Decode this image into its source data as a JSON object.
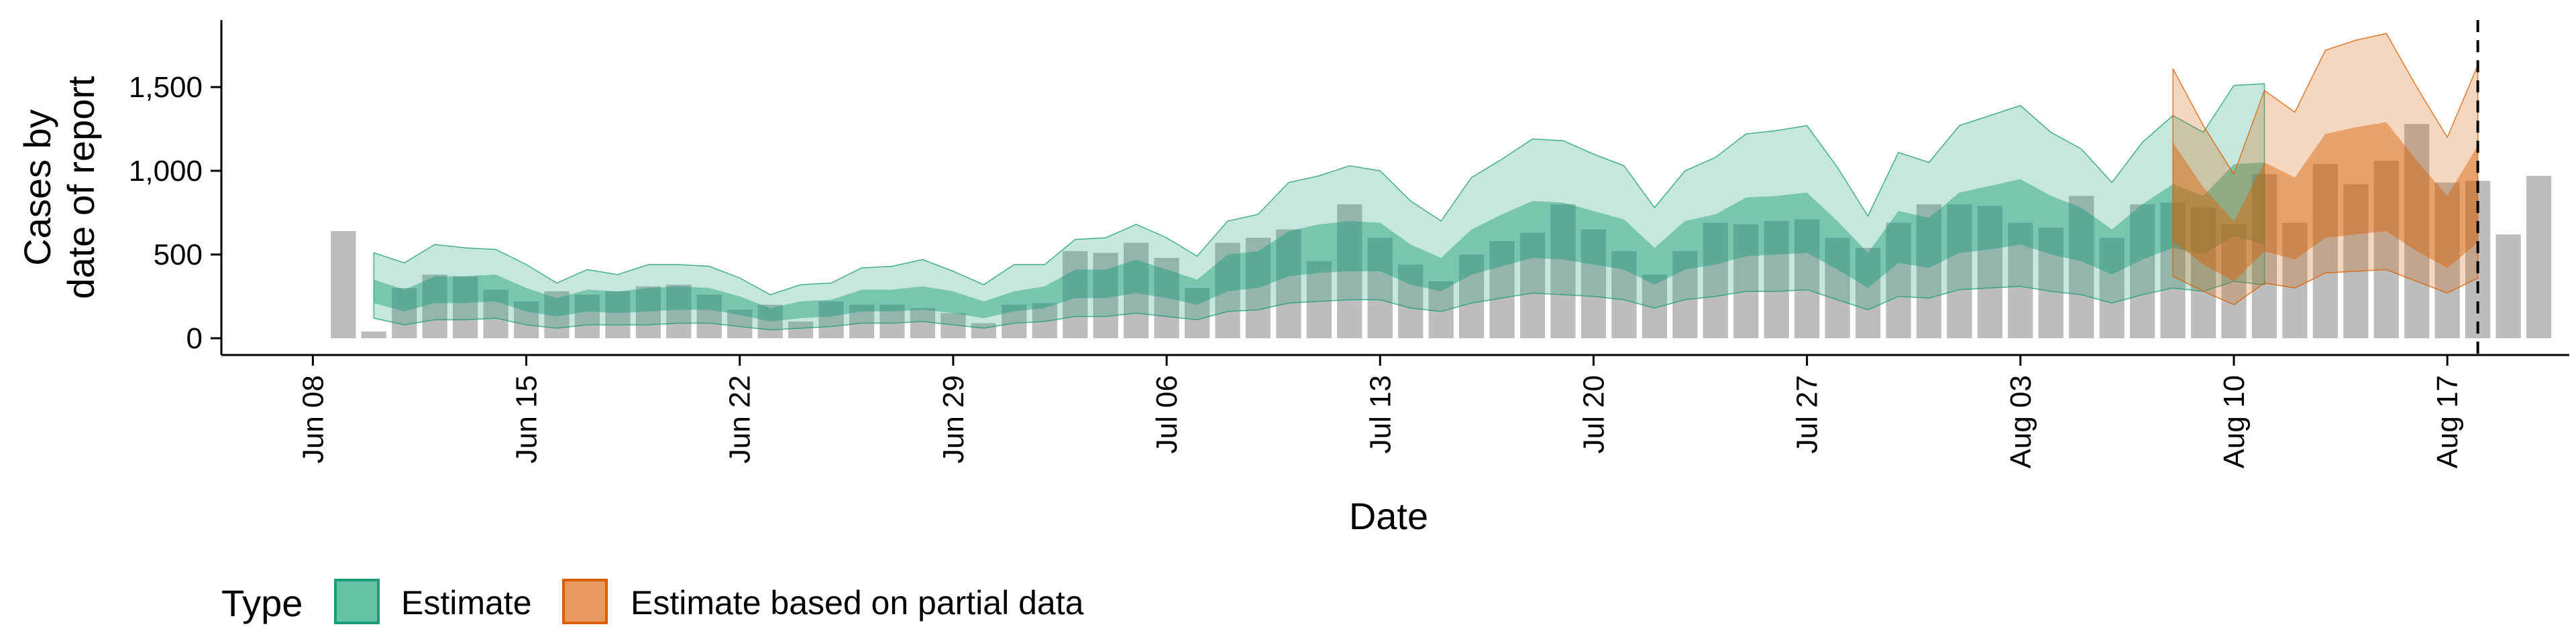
{
  "chart_data": {
    "type": "area",
    "xlabel": "Date",
    "ylabel": "Cases by\ndate of report",
    "ylim": [
      -100,
      1900
    ],
    "y_ticks": [
      0,
      500,
      1000,
      1500
    ],
    "y_tick_labels": [
      "0",
      "500",
      "1,000",
      "1,500"
    ],
    "x_ticks": [
      "2020-06-08",
      "2020-06-15",
      "2020-06-22",
      "2020-06-29",
      "2020-07-06",
      "2020-07-13",
      "2020-07-20",
      "2020-07-27",
      "2020-08-03",
      "2020-08-10",
      "2020-08-17"
    ],
    "x_tick_labels": [
      "Jun 08",
      "Jun 15",
      "Jun 22",
      "Jun 29",
      "Jul 06",
      "Jul 13",
      "Jul 20",
      "Jul 27",
      "Aug 03",
      "Aug 10",
      "Aug 17"
    ],
    "x_range": [
      "2020-06-05",
      "2020-08-21"
    ],
    "vline_date": "2020-08-18",
    "bars_start_date": "2020-06-09",
    "bars_values": [
      640,
      40,
      300,
      380,
      370,
      290,
      220,
      280,
      260,
      280,
      310,
      320,
      260,
      170,
      200,
      100,
      220,
      200,
      200,
      180,
      150,
      90,
      200,
      210,
      520,
      510,
      570,
      480,
      300,
      570,
      600,
      650,
      460,
      800,
      600,
      440,
      340,
      500,
      580,
      630,
      800,
      650,
      520,
      380,
      520,
      690,
      680,
      700,
      710,
      600,
      540,
      690,
      800,
      800,
      790,
      690,
      660,
      850,
      600,
      800,
      810,
      780,
      680,
      980,
      690,
      1040,
      920,
      1060,
      1280,
      930,
      940,
      620,
      970
    ],
    "series": [
      {
        "name": "Estimate",
        "start_date": "2020-06-10",
        "outer_upper": [
          510,
          450,
          560,
          540,
          530,
          440,
          330,
          410,
          380,
          440,
          440,
          430,
          360,
          260,
          320,
          330,
          420,
          430,
          470,
          400,
          320,
          440,
          440,
          590,
          600,
          680,
          600,
          490,
          700,
          740,
          930,
          970,
          1030,
          1000,
          820,
          700,
          960,
          1070,
          1190,
          1180,
          1100,
          1030,
          780,
          1000,
          1080,
          1220,
          1240,
          1270,
          1020,
          730,
          1110,
          1050,
          1270,
          1330,
          1390,
          1230,
          1130,
          930,
          1170,
          1330,
          1230,
          1510,
          1520
        ],
        "inner_upper": [
          350,
          290,
          370,
          370,
          380,
          300,
          240,
          290,
          280,
          300,
          310,
          300,
          250,
          180,
          220,
          230,
          290,
          290,
          310,
          280,
          220,
          280,
          310,
          410,
          410,
          470,
          410,
          350,
          500,
          520,
          640,
          680,
          700,
          690,
          560,
          480,
          650,
          740,
          820,
          810,
          760,
          710,
          540,
          700,
          740,
          840,
          850,
          870,
          700,
          510,
          760,
          720,
          870,
          910,
          950,
          850,
          780,
          650,
          800,
          920,
          850,
          1040,
          1050
        ],
        "inner_lower": [
          210,
          160,
          210,
          210,
          220,
          160,
          130,
          160,
          150,
          160,
          170,
          170,
          140,
          100,
          120,
          130,
          160,
          160,
          170,
          150,
          120,
          160,
          180,
          240,
          240,
          270,
          240,
          200,
          280,
          300,
          370,
          390,
          400,
          400,
          320,
          280,
          380,
          430,
          480,
          470,
          440,
          410,
          320,
          410,
          440,
          490,
          500,
          510,
          410,
          300,
          450,
          420,
          510,
          530,
          560,
          500,
          460,
          380,
          470,
          540,
          500,
          610,
          560
        ],
        "outer_lower": [
          120,
          80,
          110,
          110,
          120,
          80,
          60,
          80,
          80,
          80,
          90,
          90,
          70,
          50,
          60,
          70,
          90,
          90,
          100,
          80,
          60,
          90,
          100,
          130,
          130,
          150,
          130,
          110,
          160,
          170,
          210,
          220,
          230,
          230,
          180,
          160,
          210,
          240,
          270,
          260,
          250,
          230,
          180,
          230,
          250,
          280,
          280,
          290,
          230,
          170,
          250,
          240,
          290,
          300,
          310,
          280,
          260,
          210,
          260,
          300,
          280,
          340,
          320
        ],
        "fill_color": "#1b9e77",
        "legend_color": "#66c2a5"
      },
      {
        "name": "Estimate based on partial data",
        "start_date": "2020-08-08",
        "outer_upper": [
          1610,
          1270,
          980,
          1480,
          1350,
          1720,
          1780,
          1820,
          1500,
          1200,
          1630
        ],
        "inner_upper": [
          1170,
          900,
          700,
          1050,
          960,
          1220,
          1260,
          1290,
          1060,
          850,
          1150
        ],
        "inner_lower": [
          580,
          440,
          340,
          520,
          470,
          600,
          620,
          640,
          520,
          420,
          570
        ],
        "outer_lower": [
          370,
          280,
          200,
          330,
          300,
          390,
          400,
          410,
          340,
          270,
          360
        ],
        "fill_color": "#d95f02",
        "legend_color": "#e89a5e"
      }
    ],
    "legend_title": "Type",
    "legend_position": "bottom-left"
  }
}
